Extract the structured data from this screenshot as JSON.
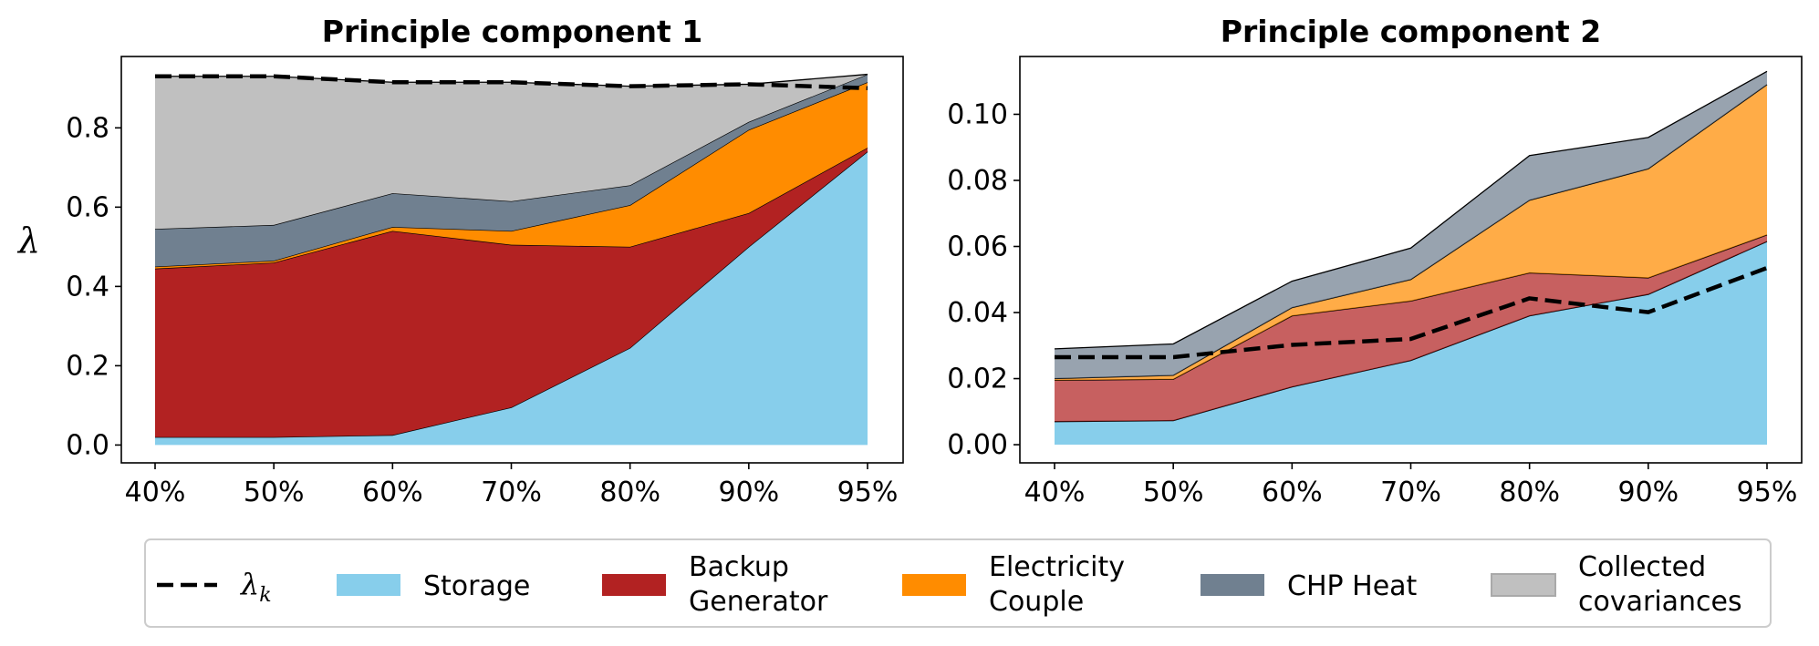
{
  "colors": {
    "storage": "#87ceeb",
    "backup_generator": "#b22222",
    "electricity_couple": "#ff8c00",
    "chp_heat": "#708090",
    "collected_covariances": "#c0c0c0",
    "lambda_k": "#000000"
  },
  "legend": {
    "lambda_k": "λ",
    "lambda_k_subscript": "k",
    "items": [
      {
        "key": "storage",
        "lines": [
          "Storage"
        ]
      },
      {
        "key": "backup_generator",
        "lines": [
          "Backup",
          "Generator"
        ]
      },
      {
        "key": "electricity_couple",
        "lines": [
          "Electricity",
          "Couple"
        ]
      },
      {
        "key": "chp_heat",
        "lines": [
          "CHP Heat"
        ]
      },
      {
        "key": "collected_covariances",
        "lines": [
          "Collected",
          "covariances"
        ]
      }
    ]
  },
  "chart_data": [
    {
      "type": "area",
      "title": "Principle component 1",
      "ylabel": "λ",
      "xlabel": "",
      "stacked": true,
      "categories": [
        "40%",
        "50%",
        "60%",
        "70%",
        "80%",
        "90%",
        "95%"
      ],
      "ylim": [
        -0.045,
        0.98
      ],
      "yticks": [
        0.0,
        0.2,
        0.4,
        0.6,
        0.8
      ],
      "ytick_labels": [
        "0.0",
        "0.2",
        "0.4",
        "0.6",
        "0.8"
      ],
      "series": [
        {
          "name": "Storage",
          "color_key": "storage",
          "values": [
            0.02,
            0.02,
            0.025,
            0.095,
            0.245,
            0.5,
            0.74
          ]
        },
        {
          "name": "Backup Generator",
          "color_key": "backup_generator",
          "values": [
            0.425,
            0.44,
            0.515,
            0.41,
            0.255,
            0.085,
            0.01
          ]
        },
        {
          "name": "Electricity Couple",
          "color_key": "electricity_couple",
          "values": [
            0.005,
            0.005,
            0.01,
            0.035,
            0.105,
            0.21,
            0.165
          ]
        },
        {
          "name": "CHP Heat",
          "color_key": "chp_heat",
          "values": [
            0.095,
            0.09,
            0.085,
            0.075,
            0.05,
            0.02,
            0.02
          ]
        },
        {
          "name": "Collected covariances",
          "color_key": "collected_covariances",
          "values": [
            0.385,
            0.375,
            0.28,
            0.3,
            0.25,
            0.095,
            0.0
          ]
        }
      ],
      "lambda_k": [
        0.93,
        0.93,
        0.915,
        0.915,
        0.905,
        0.91,
        0.9
      ]
    },
    {
      "type": "area",
      "title": "Principle component 2",
      "ylabel": "",
      "xlabel": "",
      "stacked": true,
      "categories": [
        "40%",
        "50%",
        "60%",
        "70%",
        "80%",
        "90%",
        "95%"
      ],
      "ylim": [
        -0.0055,
        0.1175
      ],
      "yticks": [
        0.0,
        0.02,
        0.04,
        0.06,
        0.08,
        0.1
      ],
      "ytick_labels": [
        "0.00",
        "0.02",
        "0.04",
        "0.06",
        "0.08",
        "0.10"
      ],
      "series": [
        {
          "name": "Storage",
          "color_key": "storage",
          "values": [
            0.007,
            0.0073,
            0.0175,
            0.0255,
            0.039,
            0.0455,
            0.0615
          ]
        },
        {
          "name": "Backup Generator",
          "color_key": "backup_generator",
          "values": [
            0.0125,
            0.0125,
            0.0215,
            0.018,
            0.013,
            0.005,
            0.002
          ]
        },
        {
          "name": "Electricity Couple",
          "color_key": "electricity_couple",
          "values": [
            0.0005,
            0.0012,
            0.0025,
            0.0065,
            0.022,
            0.033,
            0.0455
          ]
        },
        {
          "name": "CHP Heat",
          "color_key": "chp_heat",
          "values": [
            0.009,
            0.0095,
            0.008,
            0.0095,
            0.0135,
            0.0095,
            0.004
          ]
        },
        {
          "name": "Collected covariances",
          "color_key": "collected_covariances",
          "values": [
            0,
            0,
            0,
            0,
            0,
            0,
            0
          ]
        }
      ],
      "lambda_k": [
        0.0265,
        0.0265,
        0.0302,
        0.032,
        0.0443,
        0.0401,
        0.0535
      ]
    }
  ]
}
